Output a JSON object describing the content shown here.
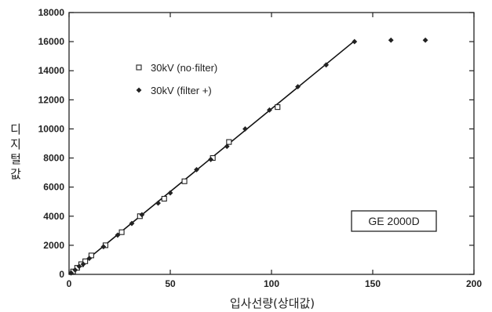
{
  "chart_data": {
    "type": "scatter",
    "title": "",
    "xlabel": "입사선량(상대값)",
    "ylabel": "디지털값",
    "xlim": [
      0,
      200
    ],
    "ylim": [
      0,
      18000
    ],
    "x_ticks": [
      0,
      50,
      100,
      150,
      200
    ],
    "y_ticks": [
      0,
      2000,
      4000,
      6000,
      8000,
      10000,
      12000,
      14000,
      16000,
      18000
    ],
    "grid": false,
    "legend_position": "top-left",
    "annotation": "GE 2000D",
    "series": [
      {
        "name": "30kV (no·filter)",
        "marker": "square",
        "points": [
          [
            2,
            200
          ],
          [
            4,
            450
          ],
          [
            6,
            700
          ],
          [
            8,
            900
          ],
          [
            11,
            1300
          ],
          [
            18,
            2000
          ],
          [
            26,
            2900
          ],
          [
            35,
            4000
          ],
          [
            47,
            5200
          ],
          [
            57,
            6400
          ],
          [
            71,
            8000
          ],
          [
            79,
            9100
          ],
          [
            103,
            11500
          ]
        ]
      },
      {
        "name": "30kV (filter +)",
        "marker": "diamond",
        "points": [
          [
            1,
            100
          ],
          [
            3,
            300
          ],
          [
            5,
            550
          ],
          [
            7,
            700
          ],
          [
            10,
            1100
          ],
          [
            17,
            1900
          ],
          [
            24,
            2700
          ],
          [
            31,
            3500
          ],
          [
            36,
            4100
          ],
          [
            44,
            4900
          ],
          [
            50,
            5600
          ],
          [
            63,
            7200
          ],
          [
            70,
            7900
          ],
          [
            78,
            8800
          ],
          [
            87,
            10000
          ],
          [
            99,
            11300
          ],
          [
            113,
            12900
          ],
          [
            127,
            14400
          ],
          [
            141,
            16000
          ],
          [
            159,
            16100
          ],
          [
            176,
            16100
          ]
        ]
      }
    ],
    "fit_line": {
      "from": [
        0,
        0
      ],
      "to": [
        141,
        16050
      ]
    }
  }
}
